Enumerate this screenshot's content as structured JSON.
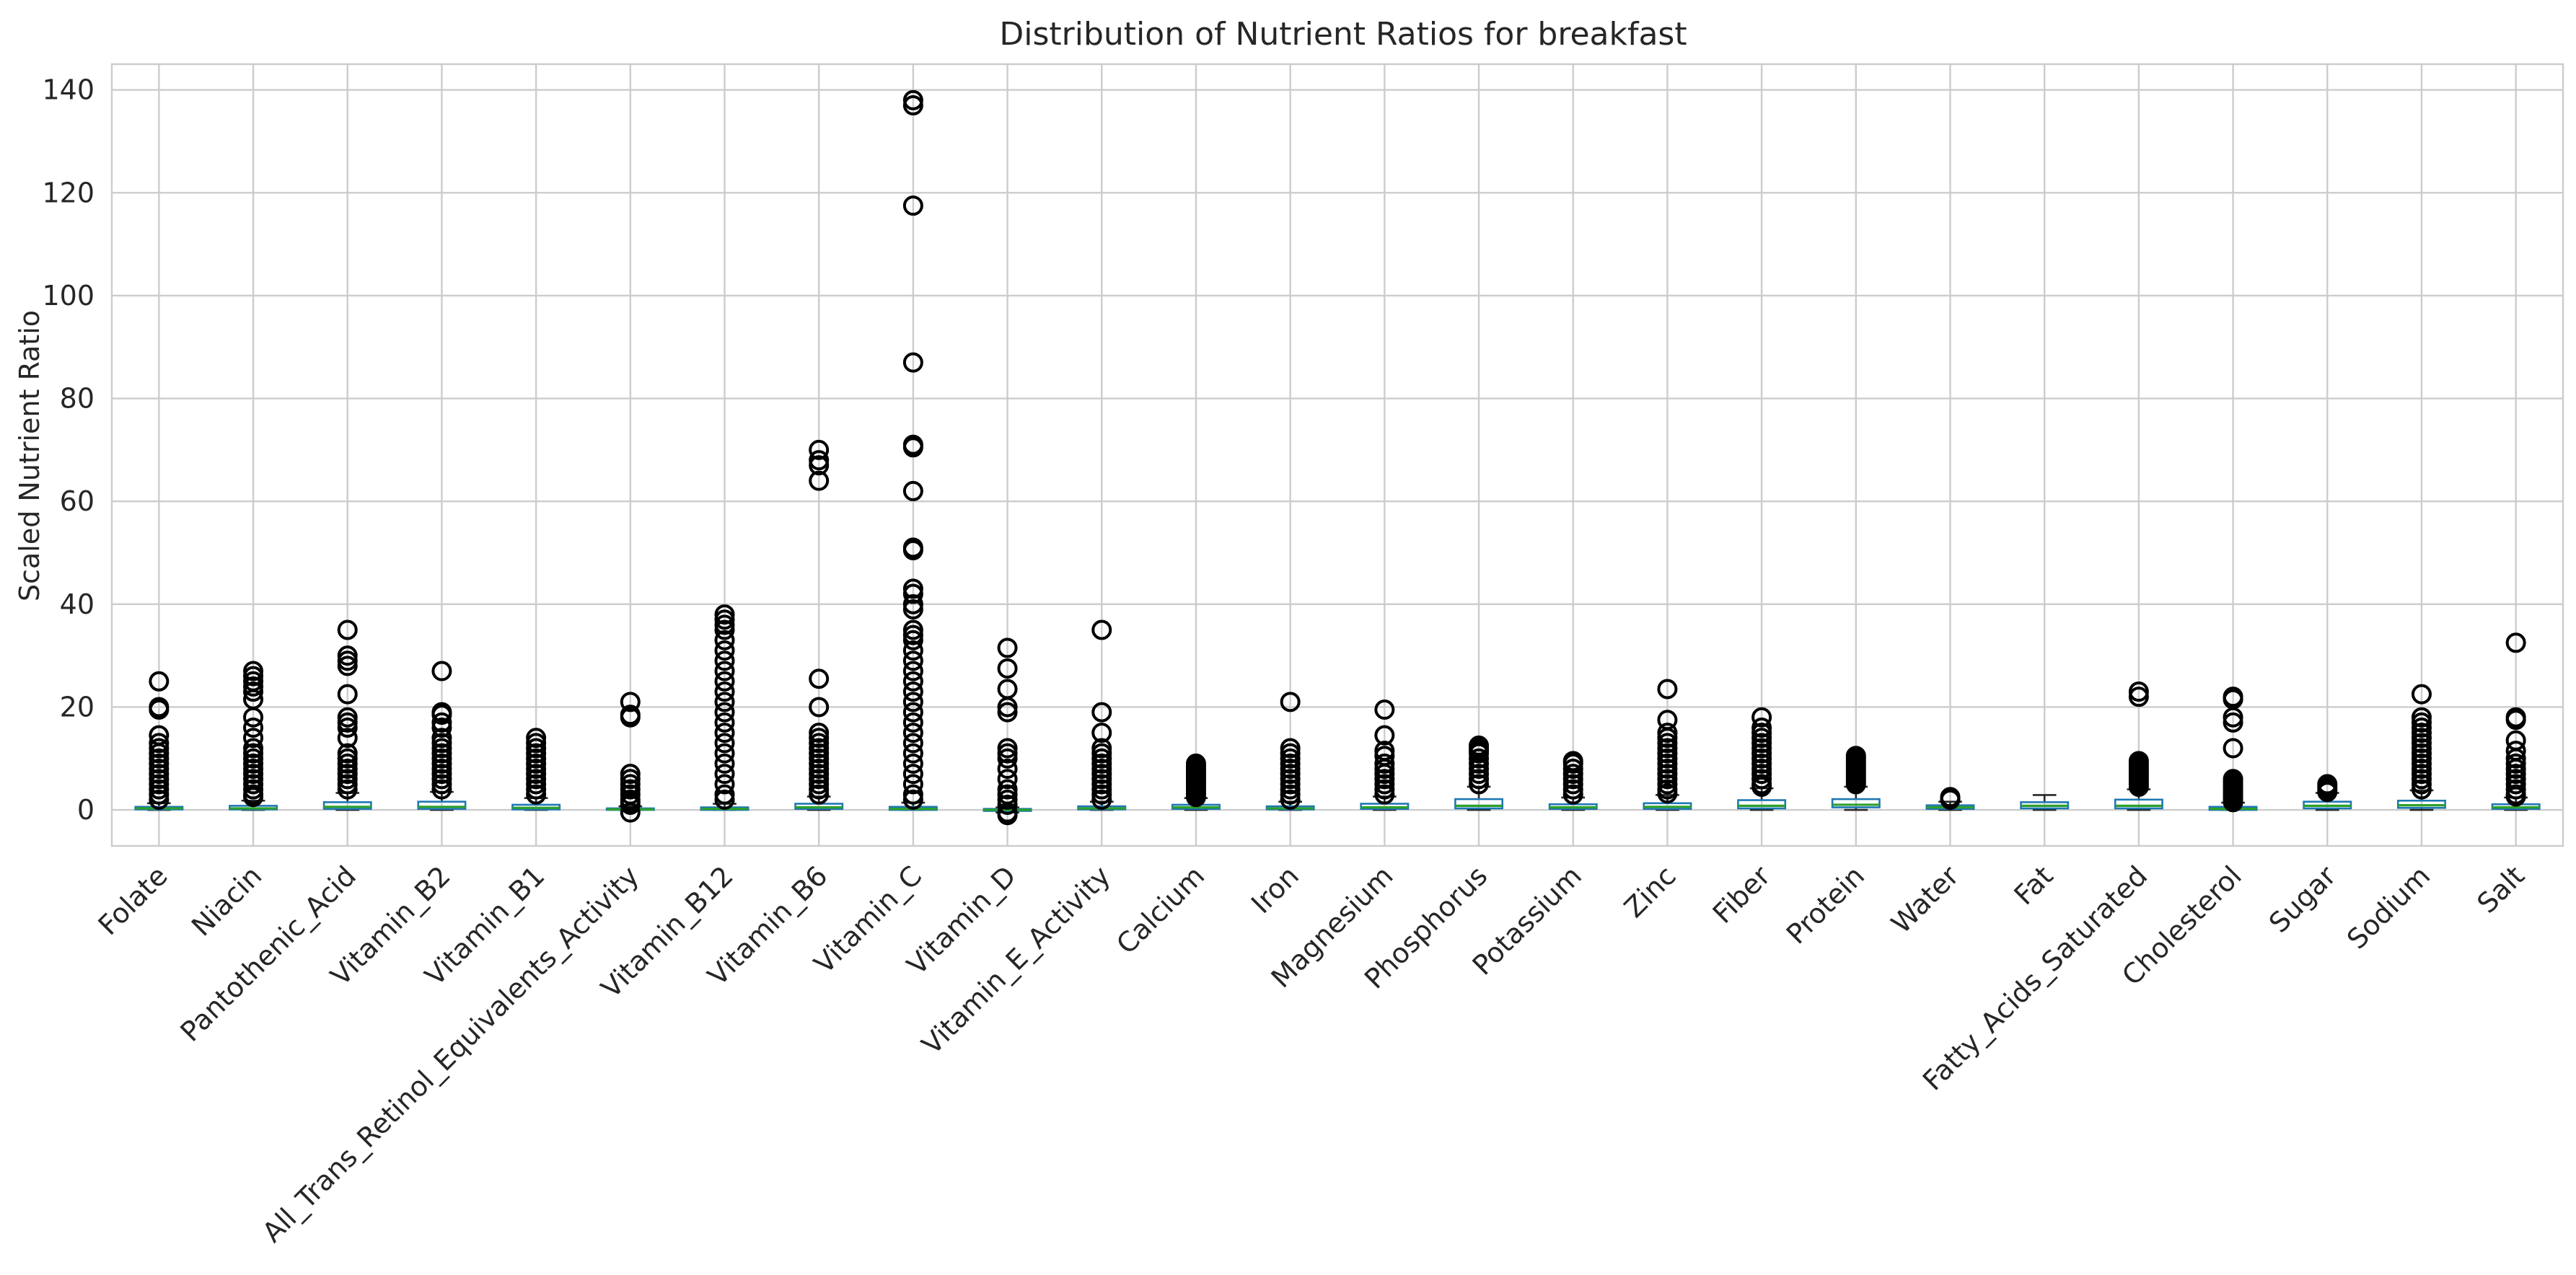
{
  "chart_data": {
    "type": "box",
    "title": "Distribution of Nutrient Ratios for breakfast",
    "xlabel": "",
    "ylabel": "Scaled Nutrient Ratio",
    "ylim": [
      -7,
      145
    ],
    "yticks": [
      0,
      20,
      40,
      60,
      80,
      100,
      120,
      140
    ],
    "grid": true,
    "colors": {
      "box": "#1f77b4",
      "median": "#2ca02c",
      "whisker": "#262626",
      "flier": "#000000",
      "grid": "#cccccc"
    },
    "categories": [
      "Folate",
      "Niacin",
      "Pantothenic_Acid",
      "Vitamin_B2",
      "Vitamin_B1",
      "All_Trans_Retinol_Equivalents_Activity",
      "Vitamin_B12",
      "Vitamin_B6",
      "Vitamin_C",
      "Vitamin_D",
      "Vitamin_E_Activity",
      "Calcium",
      "Iron",
      "Magnesium",
      "Phosphorus",
      "Potassium",
      "Zinc",
      "Fiber",
      "Protein",
      "Water",
      "Fat",
      "Fatty_Acids_Saturated",
      "Cholesterol",
      "Sugar",
      "Sodium",
      "Salt"
    ],
    "boxes": [
      {
        "name": "Folate",
        "q1": 0.1,
        "median": 0.3,
        "q3": 0.6,
        "wlo": 0,
        "whi": 1.3,
        "fliers": [
          25,
          20,
          19.5,
          14.5,
          13,
          12,
          11,
          10,
          9,
          8,
          7,
          6,
          5,
          4,
          3,
          2
        ]
      },
      {
        "name": "Niacin",
        "q1": 0.1,
        "median": 0.3,
        "q3": 0.8,
        "wlo": 0,
        "whi": 1.8,
        "fliers": [
          27,
          26,
          25,
          24,
          23,
          21.5,
          18,
          16,
          14,
          12,
          11,
          10,
          9,
          8,
          7,
          6,
          5,
          4,
          3,
          2.5
        ]
      },
      {
        "name": "Pantothenic_Acid",
        "q1": 0.2,
        "median": 0.6,
        "q3": 1.5,
        "wlo": 0,
        "whi": 3.3,
        "fliers": [
          35,
          30,
          29,
          28,
          22.5,
          18,
          17,
          16,
          14,
          11,
          10,
          9,
          8,
          7,
          6,
          5,
          4
        ]
      },
      {
        "name": "Vitamin_B2",
        "q1": 0.2,
        "median": 0.6,
        "q3": 1.6,
        "wlo": 0,
        "whi": 3.5,
        "fliers": [
          27,
          19,
          18.5,
          17,
          16,
          14,
          13,
          12,
          11,
          10,
          9,
          8,
          7,
          6,
          5,
          4
        ]
      },
      {
        "name": "Vitamin_B1",
        "q1": 0.1,
        "median": 0.4,
        "q3": 1.0,
        "wlo": 0,
        "whi": 2.3,
        "fliers": [
          14,
          13,
          12,
          11,
          10,
          9,
          8,
          7,
          6,
          5,
          4,
          3
        ]
      },
      {
        "name": "All_Trans_Retinol_Equivalents_Activity",
        "q1": 0.0,
        "median": 0.1,
        "q3": 0.3,
        "wlo": 0,
        "whi": 0.7,
        "fliers": [
          21,
          18.5,
          18,
          7,
          6,
          5,
          4,
          3,
          2,
          1.5,
          1,
          -0.5
        ]
      },
      {
        "name": "Vitamin_B12",
        "q1": 0.0,
        "median": 0.2,
        "q3": 0.5,
        "wlo": 0,
        "whi": 1.2,
        "fliers": [
          38,
          37,
          36,
          35,
          33,
          31,
          29,
          27,
          25,
          23,
          21,
          19,
          17,
          15,
          13,
          11,
          9,
          7,
          5,
          3,
          2
        ]
      },
      {
        "name": "Vitamin_B6",
        "q1": 0.2,
        "median": 0.5,
        "q3": 1.2,
        "wlo": 0,
        "whi": 2.6,
        "fliers": [
          70,
          68,
          67,
          64,
          25.5,
          20,
          15,
          14,
          13,
          12,
          11,
          10,
          9,
          8,
          7,
          6,
          5,
          4,
          3
        ]
      },
      {
        "name": "Vitamin_C",
        "q1": 0.0,
        "median": 0.2,
        "q3": 0.6,
        "wlo": 0,
        "whi": 1.4,
        "fliers": [
          138,
          137,
          117.5,
          87,
          71,
          70.5,
          62,
          51,
          50.5,
          43,
          42,
          40,
          39,
          35,
          34,
          33,
          31,
          29,
          27,
          25,
          23,
          21,
          19,
          17,
          15,
          13,
          11,
          9,
          7,
          5,
          3,
          2
        ]
      },
      {
        "name": "Vitamin_D",
        "q1": -0.2,
        "median": 0.0,
        "q3": 0.2,
        "wlo": -0.5,
        "whi": 0.5,
        "fliers": [
          31.5,
          27.5,
          23.5,
          20,
          19,
          12,
          11,
          10,
          8,
          6,
          4,
          3,
          2,
          1,
          -0.5,
          -1
        ]
      },
      {
        "name": "Vitamin_E_Activity",
        "q1": 0.1,
        "median": 0.3,
        "q3": 0.7,
        "wlo": 0,
        "whi": 1.6,
        "fliers": [
          35,
          19,
          15,
          12,
          11,
          10,
          9,
          8,
          7,
          6,
          5,
          4,
          3,
          2
        ]
      },
      {
        "name": "Calcium",
        "q1": 0.2,
        "median": 0.5,
        "q3": 1.0,
        "wlo": 0,
        "whi": 2.3,
        "fliers": [
          9,
          8.5,
          8,
          7.5,
          7,
          6.5,
          6,
          5.5,
          5,
          4.5,
          4,
          3.5,
          3,
          2.5
        ]
      },
      {
        "name": "Iron",
        "q1": 0.1,
        "median": 0.3,
        "q3": 0.7,
        "wlo": 0,
        "whi": 1.6,
        "fliers": [
          21,
          12,
          11,
          10,
          9,
          8,
          7,
          6,
          5,
          4,
          3,
          2
        ]
      },
      {
        "name": "Magnesium",
        "q1": 0.2,
        "median": 0.5,
        "q3": 1.2,
        "wlo": 0,
        "whi": 2.6,
        "fliers": [
          19.5,
          14.5,
          11.5,
          10.5,
          9,
          8,
          7,
          6,
          5,
          4,
          3
        ]
      },
      {
        "name": "Phosphorus",
        "q1": 0.3,
        "median": 0.8,
        "q3": 2.1,
        "wlo": 0,
        "whi": 4.5,
        "fliers": [
          12.5,
          12,
          11.5,
          11,
          10,
          9,
          8,
          7,
          6,
          5
        ]
      },
      {
        "name": "Potassium",
        "q1": 0.2,
        "median": 0.5,
        "q3": 1.1,
        "wlo": 0,
        "whi": 2.4,
        "fliers": [
          9.5,
          9,
          8,
          7,
          6,
          5,
          4,
          3
        ]
      },
      {
        "name": "Zinc",
        "q1": 0.2,
        "median": 0.6,
        "q3": 1.3,
        "wlo": 0,
        "whi": 2.9,
        "fliers": [
          23.5,
          17.5,
          15,
          14,
          13,
          12,
          11,
          10,
          9,
          8,
          7,
          6,
          5,
          4,
          3.2
        ]
      },
      {
        "name": "Fiber",
        "q1": 0.3,
        "median": 0.8,
        "q3": 1.9,
        "wlo": 0,
        "whi": 4.2,
        "fliers": [
          18,
          16,
          15,
          14,
          13,
          12,
          11,
          10,
          9,
          8,
          7,
          6,
          5,
          4.5
        ]
      },
      {
        "name": "Protein",
        "q1": 0.5,
        "median": 1.0,
        "q3": 2.1,
        "wlo": 0,
        "whi": 4.5,
        "fliers": [
          10.5,
          10,
          9.5,
          9,
          8.5,
          8,
          7.5,
          7,
          6.5,
          6,
          5.5,
          5
        ]
      },
      {
        "name": "Water",
        "q1": 0.2,
        "median": 0.5,
        "q3": 0.9,
        "wlo": 0,
        "whi": 1.6,
        "fliers": [
          2.5,
          2.2,
          2.0
        ]
      },
      {
        "name": "Fat",
        "q1": 0.3,
        "median": 0.8,
        "q3": 1.5,
        "wlo": 0,
        "whi": 2.9,
        "fliers": []
      },
      {
        "name": "Fatty_Acids_Saturated",
        "q1": 0.3,
        "median": 0.8,
        "q3": 2.0,
        "wlo": 0,
        "whi": 4.0,
        "fliers": [
          23,
          22,
          9.5,
          9,
          8.5,
          8,
          7.5,
          7,
          6.5,
          6,
          5.5,
          5,
          4.5
        ]
      },
      {
        "name": "Cholesterol",
        "q1": 0.0,
        "median": 0.2,
        "q3": 0.6,
        "wlo": 0,
        "whi": 1.4,
        "fliers": [
          22,
          21.5,
          18,
          17,
          12,
          6,
          5.5,
          5,
          4.5,
          4,
          3.5,
          3,
          2.5,
          2,
          1.5
        ]
      },
      {
        "name": "Sugar",
        "q1": 0.3,
        "median": 0.8,
        "q3": 1.6,
        "wlo": 0,
        "whi": 3.3,
        "fliers": [
          5,
          4.5,
          4,
          3.5
        ]
      },
      {
        "name": "Sodium",
        "q1": 0.4,
        "median": 0.9,
        "q3": 1.8,
        "wlo": 0,
        "whi": 3.8,
        "fliers": [
          22.5,
          18,
          17,
          16,
          15,
          14,
          13,
          12,
          11,
          10,
          9,
          8,
          7,
          6,
          5,
          4
        ]
      },
      {
        "name": "Salt",
        "q1": 0.2,
        "median": 0.5,
        "q3": 1.1,
        "wlo": 0,
        "whi": 2.4,
        "fliers": [
          32.5,
          18,
          17.5,
          13.5,
          11.5,
          10,
          9,
          8,
          7,
          6,
          5,
          4,
          3,
          2.6
        ]
      }
    ]
  }
}
